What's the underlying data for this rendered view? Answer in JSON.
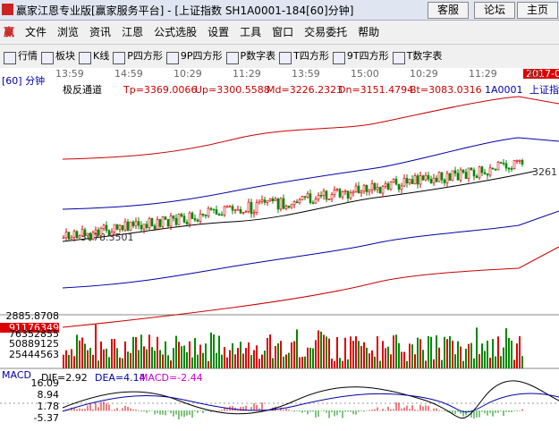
{
  "window": {
    "title": "赢家江恩专业版[赢家服务平台] - [上证指数  SH1A0001-184[60]分钟]",
    "buttons": [
      "客服",
      "论坛",
      "主页"
    ]
  },
  "menu": [
    "文件",
    "浏览",
    "资讯",
    "江恩",
    "公式选股",
    "设置",
    "工具",
    "窗口",
    "交易委托",
    "帮助"
  ],
  "toolbar": [
    "行情",
    "板块",
    "K线",
    "P四方形",
    "9P四方形",
    "P数字表",
    "T四方形",
    "9T四方形",
    "T数字表"
  ],
  "time_axis": [
    "13:59",
    "14:59",
    "10:29",
    "11:29",
    "13:59",
    "15:00",
    "10:29",
    "11:29",
    "13:"
  ],
  "date_badge": "2017-07",
  "period": "[60] 分钟",
  "main_panel": {
    "indicator": "极反通道",
    "params": [
      "Tp=3369.0066",
      "Up=3300.5588",
      "Md=3226.2323",
      "Dn=3151.4794",
      "Bt=3083.0316"
    ],
    "code": "1A0001",
    "name": "上证指",
    "low_label": "3078.3501",
    "last_label": "3261"
  },
  "volume_panel": {
    "labels": [
      "2885.8708",
      "91176349",
      "76352855",
      "50889125",
      "25444563"
    ]
  },
  "macd_panel": {
    "name": "MACD",
    "params": [
      "DIF=2.92",
      "DEA=4.14",
      "MACD=-2.44"
    ],
    "labels": [
      "16.09",
      "8.94",
      "1.78",
      "-5.37"
    ]
  }
}
